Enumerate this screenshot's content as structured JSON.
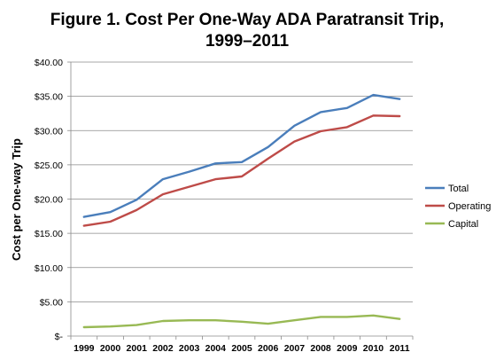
{
  "chart_data": {
    "type": "line",
    "title": [
      "Figure 1. Cost Per One-Way ADA Paratransit Trip,",
      "1999–2011"
    ],
    "xlabel": "",
    "ylabel": "Cost per One-way Trip",
    "x": [
      "1999",
      "2000",
      "2001",
      "2002",
      "2003",
      "2004",
      "2005",
      "2006",
      "2007",
      "2008",
      "2009",
      "2010",
      "2011"
    ],
    "ylim": [
      0,
      40
    ],
    "yticks": [
      0,
      5,
      10,
      15,
      20,
      25,
      30,
      35,
      40
    ],
    "ytick_labels": [
      "$-",
      "$5.00",
      "$10.00",
      "$15.00",
      "$20.00",
      "$25.00",
      "$30.00",
      "$35.00",
      "$40.00"
    ],
    "grid": true,
    "legend_position": "right",
    "series": [
      {
        "name": "Total",
        "color": "#4a7ebb",
        "values": [
          17.4,
          18.1,
          19.9,
          22.9,
          24.0,
          25.2,
          25.4,
          27.6,
          30.7,
          32.7,
          33.3,
          35.2,
          34.6
        ]
      },
      {
        "name": "Operating",
        "color": "#be4b48",
        "values": [
          16.1,
          16.7,
          18.4,
          20.7,
          21.8,
          22.9,
          23.3,
          25.9,
          28.4,
          29.9,
          30.5,
          32.2,
          32.1
        ]
      },
      {
        "name": "Capital",
        "color": "#98b954",
        "values": [
          1.3,
          1.4,
          1.6,
          2.2,
          2.3,
          2.3,
          2.1,
          1.8,
          2.3,
          2.8,
          2.8,
          3.0,
          2.5
        ]
      }
    ]
  }
}
